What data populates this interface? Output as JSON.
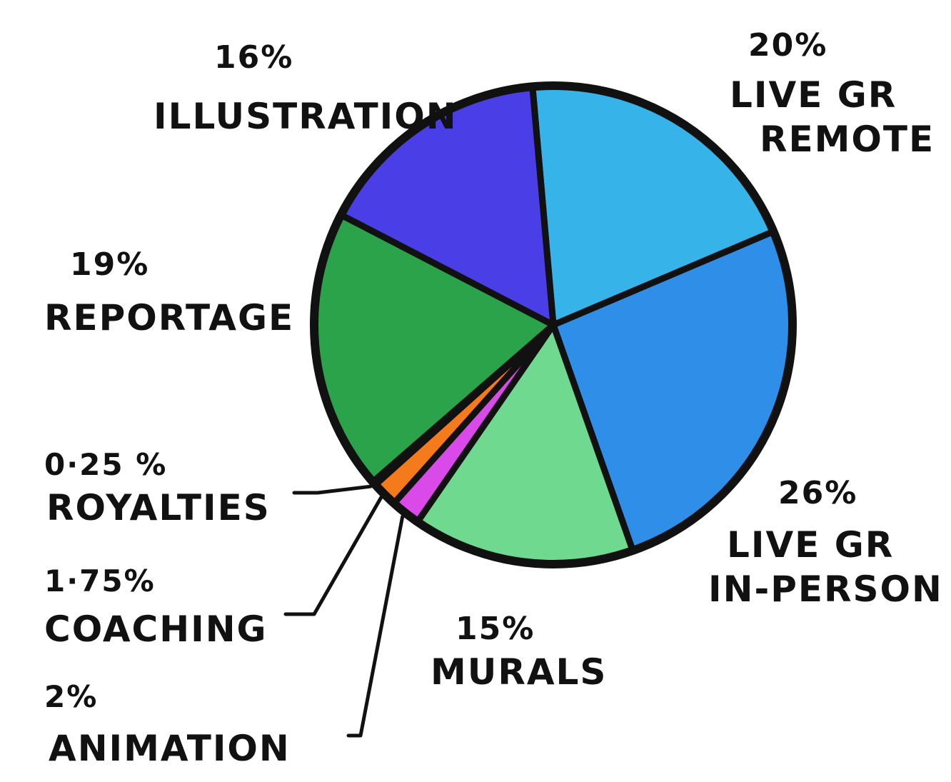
{
  "chart_data": {
    "type": "pie",
    "slices": [
      {
        "pct_label": "20%",
        "value": 20,
        "lines": [
          "LIVE GR",
          "REMOTE"
        ],
        "color": "#36b4ea"
      },
      {
        "pct_label": "26%",
        "value": 26,
        "lines": [
          "LIVE GR",
          "IN-PERSON"
        ],
        "color": "#2f8ee8"
      },
      {
        "pct_label": "15%",
        "value": 15,
        "lines": [
          "MURALS"
        ],
        "color": "#6fd98f"
      },
      {
        "pct_label": "2%",
        "value": 2,
        "lines": [
          "ANIMATION"
        ],
        "color": "#d94ae8"
      },
      {
        "pct_label": "1·75%",
        "value": 1.75,
        "lines": [
          "COACHING"
        ],
        "color": "#f47a1c"
      },
      {
        "pct_label": "0·25 %",
        "value": 0.25,
        "lines": [
          "ROYALTIES"
        ],
        "color": "#f5cf27"
      },
      {
        "pct_label": "19%",
        "value": 19,
        "lines": [
          "REPORTAGE"
        ],
        "color": "#2aa34a"
      },
      {
        "pct_label": "16%",
        "value": 16,
        "lines": [
          "ILLUSTRATION"
        ],
        "color": "#4a3fe6"
      }
    ],
    "legend": "none",
    "grid": false
  }
}
